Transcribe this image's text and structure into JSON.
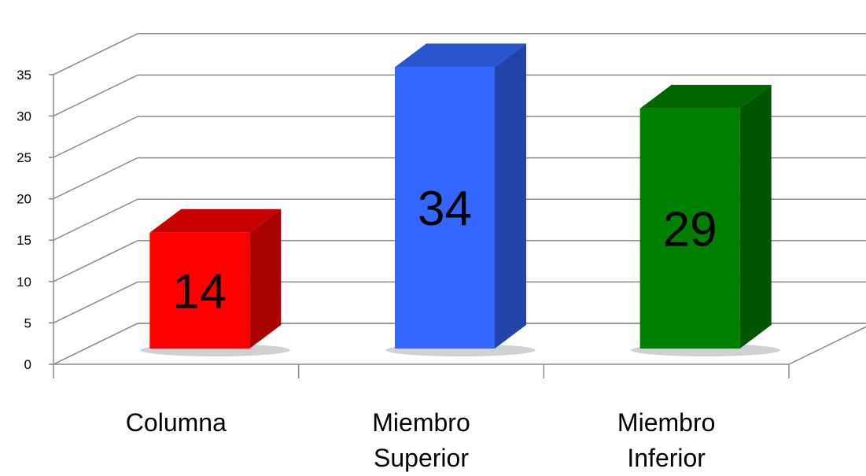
{
  "chart_data": {
    "type": "bar",
    "title": "",
    "xlabel": "",
    "ylabel": "",
    "categories": [
      [
        "Columna"
      ],
      [
        "Miembro",
        "Superior"
      ],
      [
        "Miembro",
        "Inferior"
      ]
    ],
    "values": [
      14,
      34,
      29
    ],
    "data_labels": [
      "14",
      "34",
      "29"
    ],
    "ylim": [
      0,
      35
    ],
    "yticks": [
      0,
      5,
      10,
      15,
      20,
      25,
      30,
      35
    ],
    "grid": true,
    "three_d": true,
    "colors": [
      {
        "front": "#FF0000",
        "side": "#A90000",
        "top": "#C80000"
      },
      {
        "front": "#3366FF",
        "side": "#2244AA",
        "top": "#2A55CC"
      },
      {
        "front": "#008000",
        "side": "#005500",
        "top": "#006600"
      }
    ],
    "grid_color": "#8C8C8C",
    "axis_color": "#8C8C8C"
  }
}
